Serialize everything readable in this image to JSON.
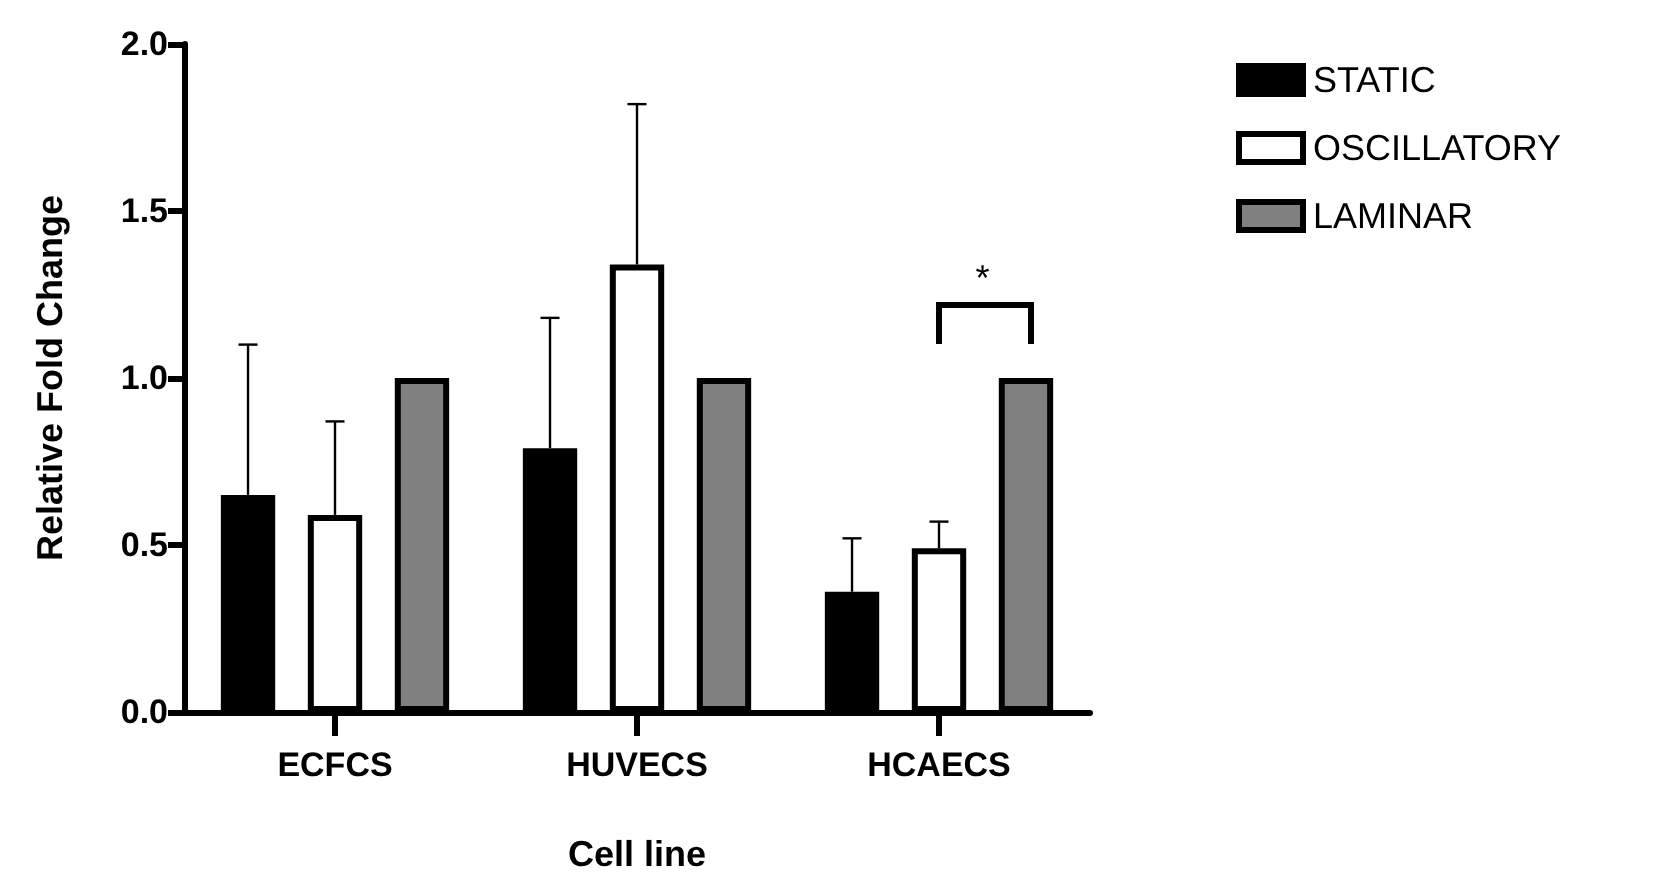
{
  "chart_data": {
    "type": "bar",
    "categories": [
      "ECFCS",
      "HUVECS",
      "HCAECS"
    ],
    "xlabel": "Cell line",
    "ylabel": "Relative Fold Change",
    "ylim": [
      0,
      2
    ],
    "yticks": [
      {
        "value": 0,
        "label": "0.0"
      },
      0.5,
      {
        "value": 1,
        "label": "1.0"
      },
      1.5,
      {
        "value": 2,
        "label": "2.0"
      }
    ],
    "series": [
      {
        "name": "STATIC",
        "color": "#000000",
        "values": [
          0.65,
          0.79,
          0.36
        ],
        "errors": [
          [
            0.65,
            1.1
          ],
          [
            0.79,
            1.18
          ],
          [
            0.36,
            0.52
          ]
        ]
      },
      {
        "name": "OSCILLATORY",
        "color": "#ffffff",
        "values": [
          0.59,
          1.34,
          0.49
        ],
        "errors": [
          [
            0.59,
            0.87
          ],
          [
            1.34,
            1.82
          ],
          [
            0.49,
            0.57
          ]
        ]
      },
      {
        "name": "LAMINAR",
        "color": "#808080",
        "values": [
          1.0,
          1.0,
          1.0
        ],
        "errors": [
          null,
          null,
          null
        ]
      }
    ],
    "annotations": [
      "*"
    ],
    "legend": "top right",
    "grid": false
  }
}
